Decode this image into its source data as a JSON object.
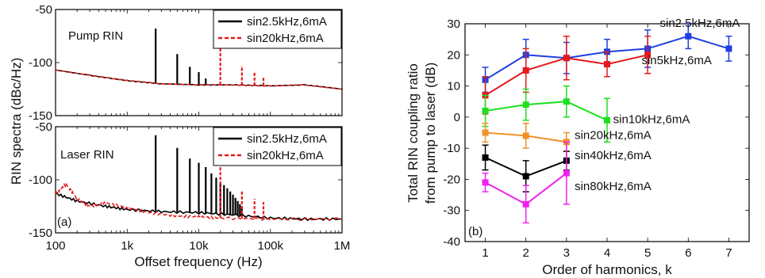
{
  "colors": {
    "black": "#000000",
    "red": "#e41a1c",
    "blue": "#1f3fe0",
    "lime": "#1ee01e",
    "orange": "#f0922a",
    "magenta": "#f020f0"
  },
  "chart_data": [
    {
      "type": "line",
      "panel": "(a)",
      "xscale": "log",
      "xlim": [
        100,
        1000000
      ],
      "x_ticks": [
        "100",
        "1k",
        "10k",
        "100k",
        "1M"
      ],
      "xlabel": "Offset frequency (Hz)",
      "ylabel": "RIN spectra (dBc/Hz)",
      "subplots": [
        {
          "label": "Pump RIN",
          "ylim": [
            -150,
            -50
          ],
          "y_ticks": [
            "-50",
            "-100",
            "-150"
          ],
          "legend": "top-right",
          "series": [
            {
              "name": "sin2.5kHz,6mA",
              "color": "#000000",
              "style": "solid",
              "baseline": [
                [
                  100,
                  -107
                ],
                [
                  300,
                  -112
                ],
                [
                  1000,
                  -117
                ],
                [
                  3000,
                  -120
                ],
                [
                  10000,
                  -121
                ],
                [
                  30000,
                  -121
                ],
                [
                  100000,
                  -122
                ],
                [
                  300000,
                  -121
                ],
                [
                  1000000,
                  -125
                ]
              ],
              "peaks": [
                [
                  2500,
                  -68
                ],
                [
                  5000,
                  -92
                ],
                [
                  7500,
                  -104
                ],
                [
                  10000,
                  -109
                ],
                [
                  12500,
                  -115
                ]
              ]
            },
            {
              "name": "sin20kHz,6mA",
              "color": "#e41a1c",
              "style": "dashed",
              "baseline": [
                [
                  100,
                  -107
                ],
                [
                  300,
                  -112
                ],
                [
                  1000,
                  -117
                ],
                [
                  3000,
                  -120
                ],
                [
                  10000,
                  -121
                ],
                [
                  30000,
                  -121
                ],
                [
                  100000,
                  -122
                ],
                [
                  300000,
                  -121
                ],
                [
                  1000000,
                  -125
                ]
              ],
              "peaks": [
                [
                  20000,
                  -64
                ],
                [
                  40000,
                  -103
                ],
                [
                  60000,
                  -109
                ],
                [
                  80000,
                  -113
                ]
              ]
            }
          ]
        },
        {
          "label": "Laser RIN",
          "ylim": [
            -150,
            -50
          ],
          "y_ticks": [
            "-50",
            "-100",
            "-150"
          ],
          "legend": "top-right",
          "series": [
            {
              "name": "sin2.5kHz,6mA",
              "color": "#000000",
              "style": "solid",
              "baseline": [
                [
                  100,
                  -113
                ],
                [
                  200,
                  -120
                ],
                [
                  500,
                  -125
                ],
                [
                  1000,
                  -128
                ],
                [
                  3000,
                  -130
                ],
                [
                  10000,
                  -131
                ],
                [
                  30000,
                  -133
                ],
                [
                  100000,
                  -136
                ],
                [
                  300000,
                  -137
                ],
                [
                  1000000,
                  -137
                ]
              ],
              "peaks": [
                [
                  2500,
                  -58
                ],
                [
                  5000,
                  -70
                ],
                [
                  7500,
                  -80
                ],
                [
                  10000,
                  -84
                ],
                [
                  12500,
                  -88
                ],
                [
                  15000,
                  -94
                ],
                [
                  17500,
                  -98
                ],
                [
                  20000,
                  -102
                ],
                [
                  22500,
                  -105
                ],
                [
                  25000,
                  -108
                ],
                [
                  27500,
                  -111
                ],
                [
                  30000,
                  -114
                ],
                [
                  32500,
                  -117
                ],
                [
                  35000,
                  -120
                ],
                [
                  37500,
                  -123
                ],
                [
                  40000,
                  -126
                ]
              ]
            },
            {
              "name": "sin20kHz,6mA",
              "color": "#e41a1c",
              "style": "dashed",
              "baseline": [
                [
                  100,
                  -113
                ],
                [
                  140,
                  -104
                ],
                [
                  200,
                  -118
                ],
                [
                  300,
                  -125
                ],
                [
                  500,
                  -122
                ],
                [
                  1000,
                  -126
                ],
                [
                  2000,
                  -131
                ],
                [
                  5000,
                  -134
                ],
                [
                  10000,
                  -135
                ],
                [
                  20000,
                  -136
                ],
                [
                  100000,
                  -137
                ],
                [
                  1000000,
                  -137
                ]
              ],
              "peaks": [
                [
                  20000,
                  -62
                ],
                [
                  40000,
                  -110
                ],
                [
                  60000,
                  -118
                ],
                [
                  80000,
                  -121
                ]
              ]
            }
          ]
        }
      ]
    },
    {
      "type": "line",
      "panel": "(b)",
      "xlabel": "Order of harmonics, k",
      "ylabel": "Total RIN coupling ratio from pump to laser (dB)",
      "xlim": [
        0.5,
        7.5
      ],
      "ylim": [
        -40,
        30
      ],
      "x_ticks": [
        "1",
        "2",
        "3",
        "4",
        "5",
        "6",
        "7"
      ],
      "y_ticks": [
        "30",
        "20",
        "10",
        "0",
        "-10",
        "-20",
        "-30",
        "-40"
      ],
      "series": [
        {
          "name": "sin2.5kHz,6mA",
          "color": "#1f3fe0",
          "marker": "square",
          "x": [
            1,
            2,
            3,
            4,
            5,
            6,
            7
          ],
          "y": [
            12,
            20,
            19,
            21,
            22,
            26,
            22
          ],
          "yerr": [
            4,
            5,
            5,
            4,
            6,
            4,
            4
          ]
        },
        {
          "name": "sin5kHz,6mA",
          "color": "#e41a1c",
          "marker": "square",
          "x": [
            1,
            2,
            3,
            4,
            5
          ],
          "y": [
            7,
            15,
            19,
            17,
            20
          ],
          "yerr": [
            6,
            7,
            7,
            4,
            6
          ]
        },
        {
          "name": "sin10kHz,6mA",
          "color": "#1ee01e",
          "marker": "square",
          "x": [
            1,
            2,
            3,
            4
          ],
          "y": [
            2,
            4,
            5,
            -1
          ],
          "yerr": [
            5,
            5,
            5,
            7
          ]
        },
        {
          "name": "sin20kHz,6mA",
          "color": "#f0922a",
          "marker": "square",
          "x": [
            1,
            2,
            3
          ],
          "y": [
            -5,
            -6,
            -8
          ],
          "yerr": [
            3,
            4,
            3
          ]
        },
        {
          "name": "sin40kHz,6mA",
          "color": "#000000",
          "marker": "square",
          "x": [
            1,
            2,
            3
          ],
          "y": [
            -13,
            -19,
            -14
          ],
          "yerr": [
            4,
            5,
            3
          ]
        },
        {
          "name": "sin80kHz,6mA",
          "color": "#f020f0",
          "marker": "square",
          "x": [
            1,
            2,
            3
          ],
          "y": [
            -21,
            -28,
            -18
          ],
          "yerr": [
            3,
            6,
            10
          ]
        }
      ]
    }
  ],
  "labels": {
    "a_label": "(a)",
    "b_label": "(b)",
    "a_ylabel": "RIN spectra (dBc/Hz)",
    "a_xlabel": "Offset frequency (Hz)",
    "b_ylabel_1": "Total RIN coupling ratio",
    "b_ylabel_2": "from pump to laser (dB)",
    "b_xlabel": "Order of harmonics, k",
    "top_label": "Pump RIN",
    "bottom_label": "Laser RIN",
    "leg_black": "sin2.5kHz,6mA",
    "leg_red": "sin20kHz,6mA"
  }
}
